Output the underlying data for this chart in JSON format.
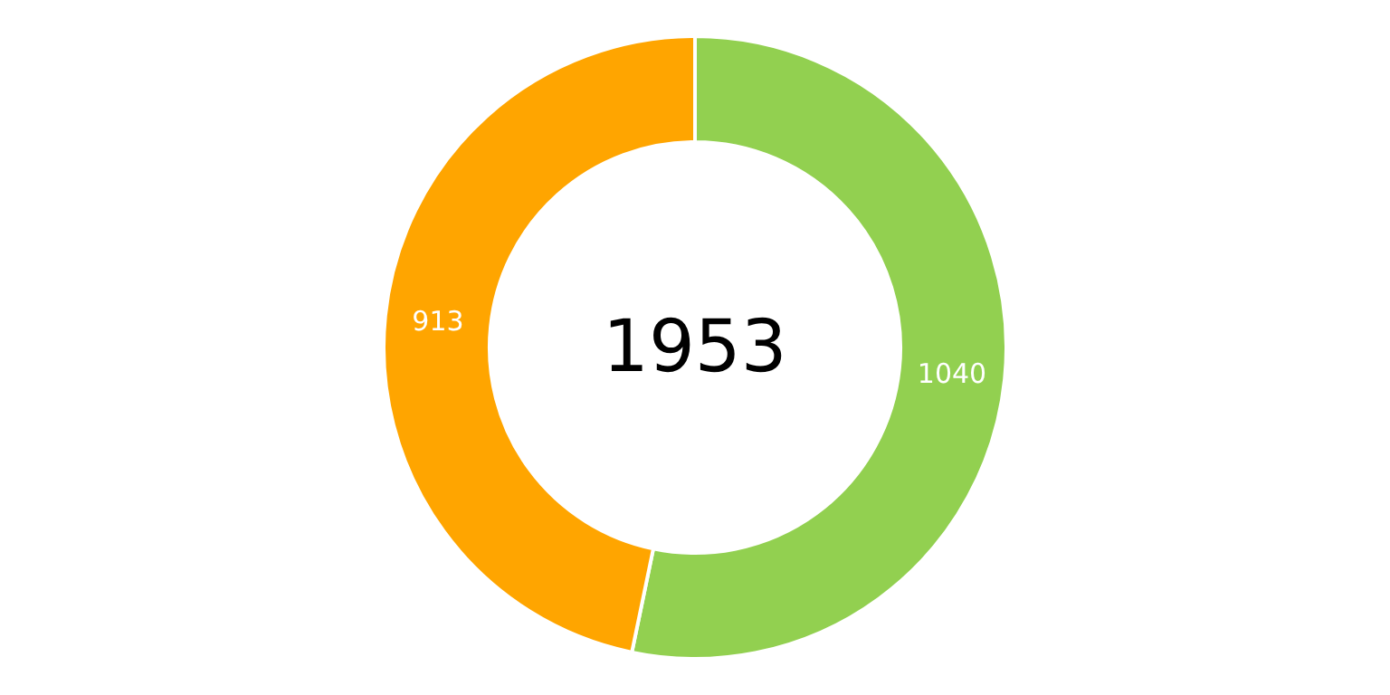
{
  "chart_data": {
    "type": "donut",
    "categories": [
      null,
      null
    ],
    "values": [
      1040,
      913
    ],
    "colors": [
      "#92d050",
      "#ffa500"
    ],
    "data_labels": true,
    "legend": false,
    "annotations": [
      "1953"
    ]
  }
}
